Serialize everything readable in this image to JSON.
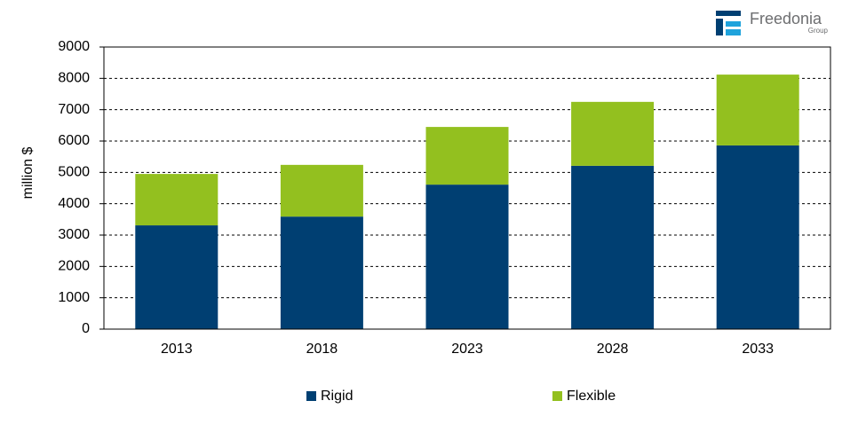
{
  "chart_data": {
    "type": "stacked-bar",
    "y_label": "million $",
    "categories": [
      "2013",
      "2018",
      "2023",
      "2028",
      "2033"
    ],
    "series": [
      {
        "name": "Rigid",
        "color": "#003f72",
        "values": [
          3310,
          3590,
          4610,
          5210,
          5860
        ]
      },
      {
        "name": "Flexible",
        "color": "#93c01f",
        "values": [
          1640,
          1650,
          1840,
          2040,
          2260
        ]
      }
    ],
    "ylim": [
      0,
      9000
    ],
    "yticks": [
      0,
      1000,
      2000,
      3000,
      4000,
      5000,
      6000,
      7000,
      8000,
      9000
    ],
    "grid": true
  },
  "logo": {
    "name": "Freedonia",
    "sub": "Group"
  }
}
